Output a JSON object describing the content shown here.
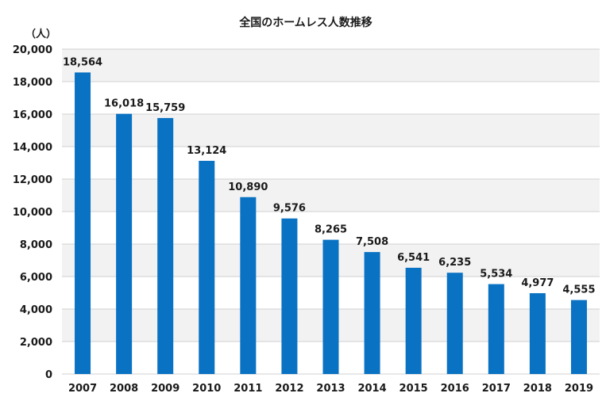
{
  "chart_data": {
    "type": "bar",
    "title": "全国のホームレス人数推移",
    "ylabel": "（人）",
    "xlabel": "",
    "categories": [
      "2007",
      "2008",
      "2009",
      "2010",
      "2011",
      "2012",
      "2013",
      "2014",
      "2015",
      "2016",
      "2017",
      "2018",
      "2019"
    ],
    "values": [
      18564,
      16018,
      15759,
      13124,
      10890,
      9576,
      8265,
      7508,
      6541,
      6235,
      5534,
      4977,
      4555
    ],
    "data_labels": [
      "18,564",
      "16,018",
      "15,759",
      "13,124",
      "10,890",
      "9,576",
      "8,265",
      "7,508",
      "6,541",
      "6,235",
      "5,534",
      "4,977",
      "4,555"
    ],
    "ylim": [
      0,
      20000
    ],
    "yticks": [
      "0",
      "2,000",
      "4,000",
      "6,000",
      "8,000",
      "10,000",
      "12,000",
      "14,000",
      "16,000",
      "18,000",
      "20,000"
    ],
    "grid": true,
    "bar_color": "#0a72c2",
    "band_color": "#f2f2f2"
  }
}
